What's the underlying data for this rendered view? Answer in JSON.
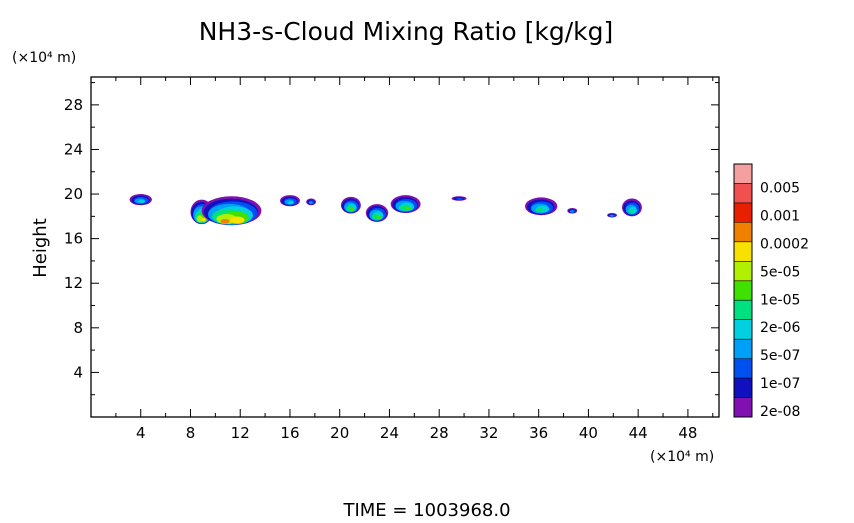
{
  "chart_data": {
    "type": "heatmap",
    "title": "NH3-s-Cloud Mixing Ratio [kg/kg]",
    "xlabel": "",
    "ylabel": "Height",
    "x_unit": "(×10⁴ m)",
    "y_unit": "(×10⁴ m)",
    "xlim": [
      0,
      50.5
    ],
    "ylim": [
      0,
      30.5
    ],
    "x_ticks": [
      4,
      8,
      12,
      16,
      20,
      24,
      28,
      32,
      36,
      40,
      44,
      48
    ],
    "y_ticks": [
      4,
      8,
      12,
      16,
      20,
      24,
      28
    ],
    "grid": false,
    "legend_position": "right",
    "time_label": "TIME = 1003968.0",
    "colorbar": {
      "labels": [
        "0.005",
        "0.001",
        "0.0002",
        "5e-05",
        "1e-05",
        "2e-06",
        "5e-07",
        "1e-07",
        "2e-08"
      ],
      "colors_top_to_bottom": [
        "#f4a0a0",
        "#f05050",
        "#e82000",
        "#f08000",
        "#f8e000",
        "#b0f000",
        "#40e000",
        "#00e080",
        "#00d0e0",
        "#00a0f8",
        "#0050f0",
        "#1010c0",
        "#8010b0"
      ]
    },
    "cloud_regions": [
      {
        "x_center": 4.0,
        "y_center": 19.5,
        "x_width": 1.8,
        "y_height": 1.0,
        "peak_level": 5
      },
      {
        "x_center": 8.9,
        "y_center": 18.4,
        "x_width": 1.8,
        "y_height": 2.2,
        "peak_level": 9
      },
      {
        "x_center": 11.3,
        "y_center": 18.5,
        "x_width": 4.8,
        "y_height": 2.6,
        "peak_level": 10
      },
      {
        "x_center": 16.0,
        "y_center": 19.4,
        "x_width": 1.6,
        "y_height": 1.0,
        "peak_level": 5
      },
      {
        "x_center": 17.7,
        "y_center": 19.3,
        "x_width": 0.8,
        "y_height": 0.6,
        "peak_level": 4
      },
      {
        "x_center": 20.9,
        "y_center": 19.0,
        "x_width": 1.6,
        "y_height": 1.5,
        "peak_level": 7
      },
      {
        "x_center": 23.0,
        "y_center": 18.3,
        "x_width": 1.8,
        "y_height": 1.6,
        "peak_level": 7
      },
      {
        "x_center": 25.3,
        "y_center": 19.1,
        "x_width": 2.4,
        "y_height": 1.6,
        "peak_level": 7
      },
      {
        "x_center": 29.6,
        "y_center": 19.6,
        "x_width": 1.2,
        "y_height": 0.4,
        "peak_level": 3
      },
      {
        "x_center": 36.2,
        "y_center": 18.9,
        "x_width": 2.6,
        "y_height": 1.6,
        "peak_level": 6
      },
      {
        "x_center": 38.7,
        "y_center": 18.5,
        "x_width": 0.8,
        "y_height": 0.5,
        "peak_level": 4
      },
      {
        "x_center": 43.5,
        "y_center": 18.8,
        "x_width": 1.6,
        "y_height": 1.6,
        "peak_level": 6
      },
      {
        "x_center": 41.9,
        "y_center": 18.1,
        "x_width": 0.8,
        "y_height": 0.4,
        "peak_level": 4
      }
    ]
  }
}
